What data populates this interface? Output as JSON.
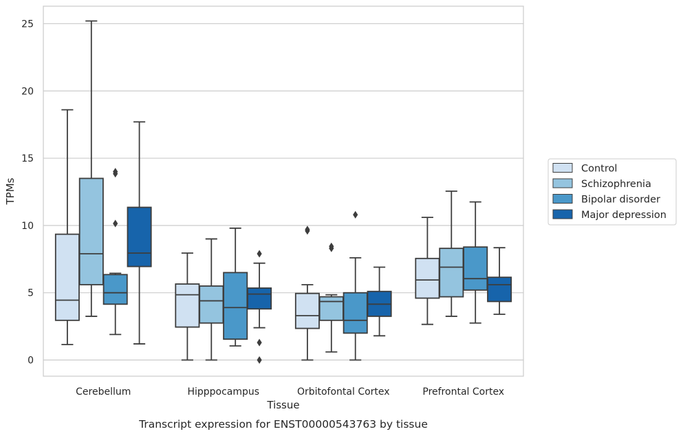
{
  "caption": "Transcript expression for ENST00000543763 by tissue",
  "chart_data": {
    "type": "box",
    "xlabel": "Tissue",
    "ylabel": "TPMs",
    "ylim": [
      -1.2,
      26.3
    ],
    "yticks": [
      0,
      5,
      10,
      15,
      20,
      25
    ],
    "grid": "horizontal",
    "legend_position": "right",
    "categories": [
      "Cerebellum",
      "Hipppocampus",
      "Orbitofontal Cortex",
      "Prefrontal Cortex"
    ],
    "series": [
      {
        "name": "Control",
        "color": "#d0e1f2",
        "boxes": [
          {
            "whisker_low": 1.15,
            "q1": 2.95,
            "median": 4.45,
            "q3": 9.35,
            "whisker_high": 18.6,
            "outliers": []
          },
          {
            "whisker_low": 0.0,
            "q1": 2.45,
            "median": 4.85,
            "q3": 5.65,
            "whisker_high": 7.95,
            "outliers": []
          },
          {
            "whisker_low": 0.0,
            "q1": 2.35,
            "median": 3.3,
            "q3": 4.95,
            "whisker_high": 5.6,
            "outliers": [
              9.6,
              9.7
            ]
          },
          {
            "whisker_low": 2.65,
            "q1": 4.6,
            "median": 5.95,
            "q3": 7.55,
            "whisker_high": 10.6,
            "outliers": []
          }
        ]
      },
      {
        "name": "Schizophrenia",
        "color": "#94c4df",
        "boxes": [
          {
            "whisker_low": 3.25,
            "q1": 5.6,
            "median": 7.9,
            "q3": 13.5,
            "whisker_high": 25.2,
            "outliers": []
          },
          {
            "whisker_low": 0.0,
            "q1": 2.75,
            "median": 4.4,
            "q3": 5.5,
            "whisker_high": 9.0,
            "outliers": []
          },
          {
            "whisker_low": 0.6,
            "q1": 2.95,
            "median": 4.35,
            "q3": 4.7,
            "whisker_high": 4.85,
            "outliers": [
              8.3,
              8.45
            ]
          },
          {
            "whisker_low": 3.25,
            "q1": 4.7,
            "median": 6.9,
            "q3": 8.3,
            "whisker_high": 12.55,
            "outliers": []
          }
        ]
      },
      {
        "name": "Bipolar disorder",
        "color": "#4a98c9",
        "boxes": [
          {
            "whisker_low": 1.9,
            "q1": 4.15,
            "median": 5.0,
            "q3": 6.35,
            "whisker_high": 6.45,
            "outliers": [
              10.15,
              13.85,
              14.0
            ]
          },
          {
            "whisker_low": 1.05,
            "q1": 1.55,
            "median": 3.9,
            "q3": 6.5,
            "whisker_high": 9.8,
            "outliers": []
          },
          {
            "whisker_low": 0.0,
            "q1": 2.0,
            "median": 2.95,
            "q3": 5.0,
            "whisker_high": 7.6,
            "outliers": [
              10.8
            ]
          },
          {
            "whisker_low": 2.75,
            "q1": 5.2,
            "median": 6.05,
            "q3": 8.4,
            "whisker_high": 11.75,
            "outliers": []
          }
        ]
      },
      {
        "name": "Major depression",
        "color": "#1764ab",
        "boxes": [
          {
            "whisker_low": 1.2,
            "q1": 6.95,
            "median": 7.95,
            "q3": 11.35,
            "whisker_high": 17.7,
            "outliers": []
          },
          {
            "whisker_low": 2.4,
            "q1": 3.8,
            "median": 4.9,
            "q3": 5.35,
            "whisker_high": 7.2,
            "outliers": [
              7.9,
              1.3,
              0.0
            ]
          },
          {
            "whisker_low": 1.8,
            "q1": 3.25,
            "median": 4.15,
            "q3": 5.1,
            "whisker_high": 6.9,
            "outliers": []
          },
          {
            "whisker_low": 3.4,
            "q1": 4.35,
            "median": 5.6,
            "q3": 6.15,
            "whisker_high": 8.35,
            "outliers": []
          }
        ]
      }
    ]
  }
}
